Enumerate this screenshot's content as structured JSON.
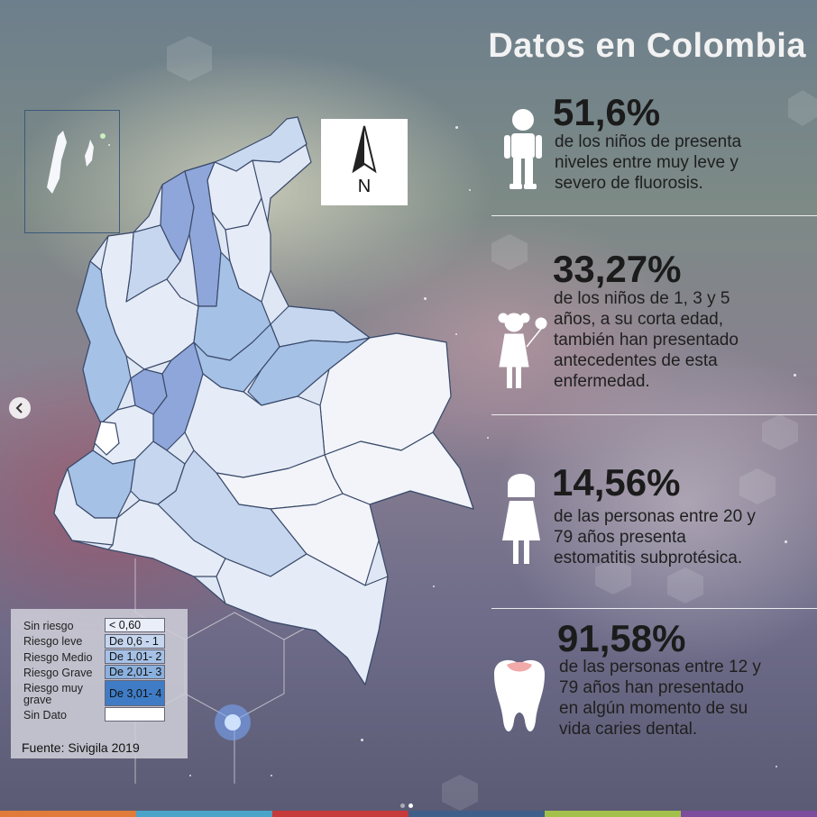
{
  "title": "Datos en Colombia",
  "north_label": "N",
  "stats": [
    {
      "percent": "51,6%",
      "lines": [
        "de los niños de presenta",
        "niveles entre muy leve y",
        "severo de fluorosis."
      ],
      "icon": "boy-icon"
    },
    {
      "percent": "33,27%",
      "lines": [
        "de los niños de 1, 3 y 5",
        "años, a su corta edad,",
        "también han presentado",
        "antecedentes de esta",
        "enfermedad."
      ],
      "icon": "girl-with-balloon-icon"
    },
    {
      "percent": "14,56%",
      "lines": [
        "de las personas entre 20 y",
        "79 años presenta",
        "estomatitis subprotésica."
      ],
      "icon": "woman-icon"
    },
    {
      "percent": "91,58%",
      "lines": [
        "de las personas entre 12 y",
        "79 años han presentado",
        "en algún momento de su",
        "vida caries dental."
      ],
      "icon": "tooth-icon"
    }
  ],
  "legend": {
    "labels": [
      "Sin riesgo",
      "Riesgo  leve",
      "Riesgo Medio",
      "Riesgo Grave",
      "Riesgo muy",
      "grave",
      "Sin Dato"
    ],
    "ranges": [
      "< 0,60",
      "De 0,6 - 1",
      "De 1,01- 2",
      "De 2,01- 3",
      "De 3,01- 4",
      ""
    ],
    "colors": [
      "#e9eef8",
      "#c5d6ee",
      "#a6c1e6",
      "#8ab0de",
      "#3f7cc5",
      "#ffffff"
    ],
    "source": "Fuente: Sivigila 2019"
  },
  "bottom_bar_colors": [
    "#e07b39",
    "#4aa3c8",
    "#c63a3a",
    "#3e5f8a",
    "#a3c04a",
    "#7b4d9c"
  ]
}
